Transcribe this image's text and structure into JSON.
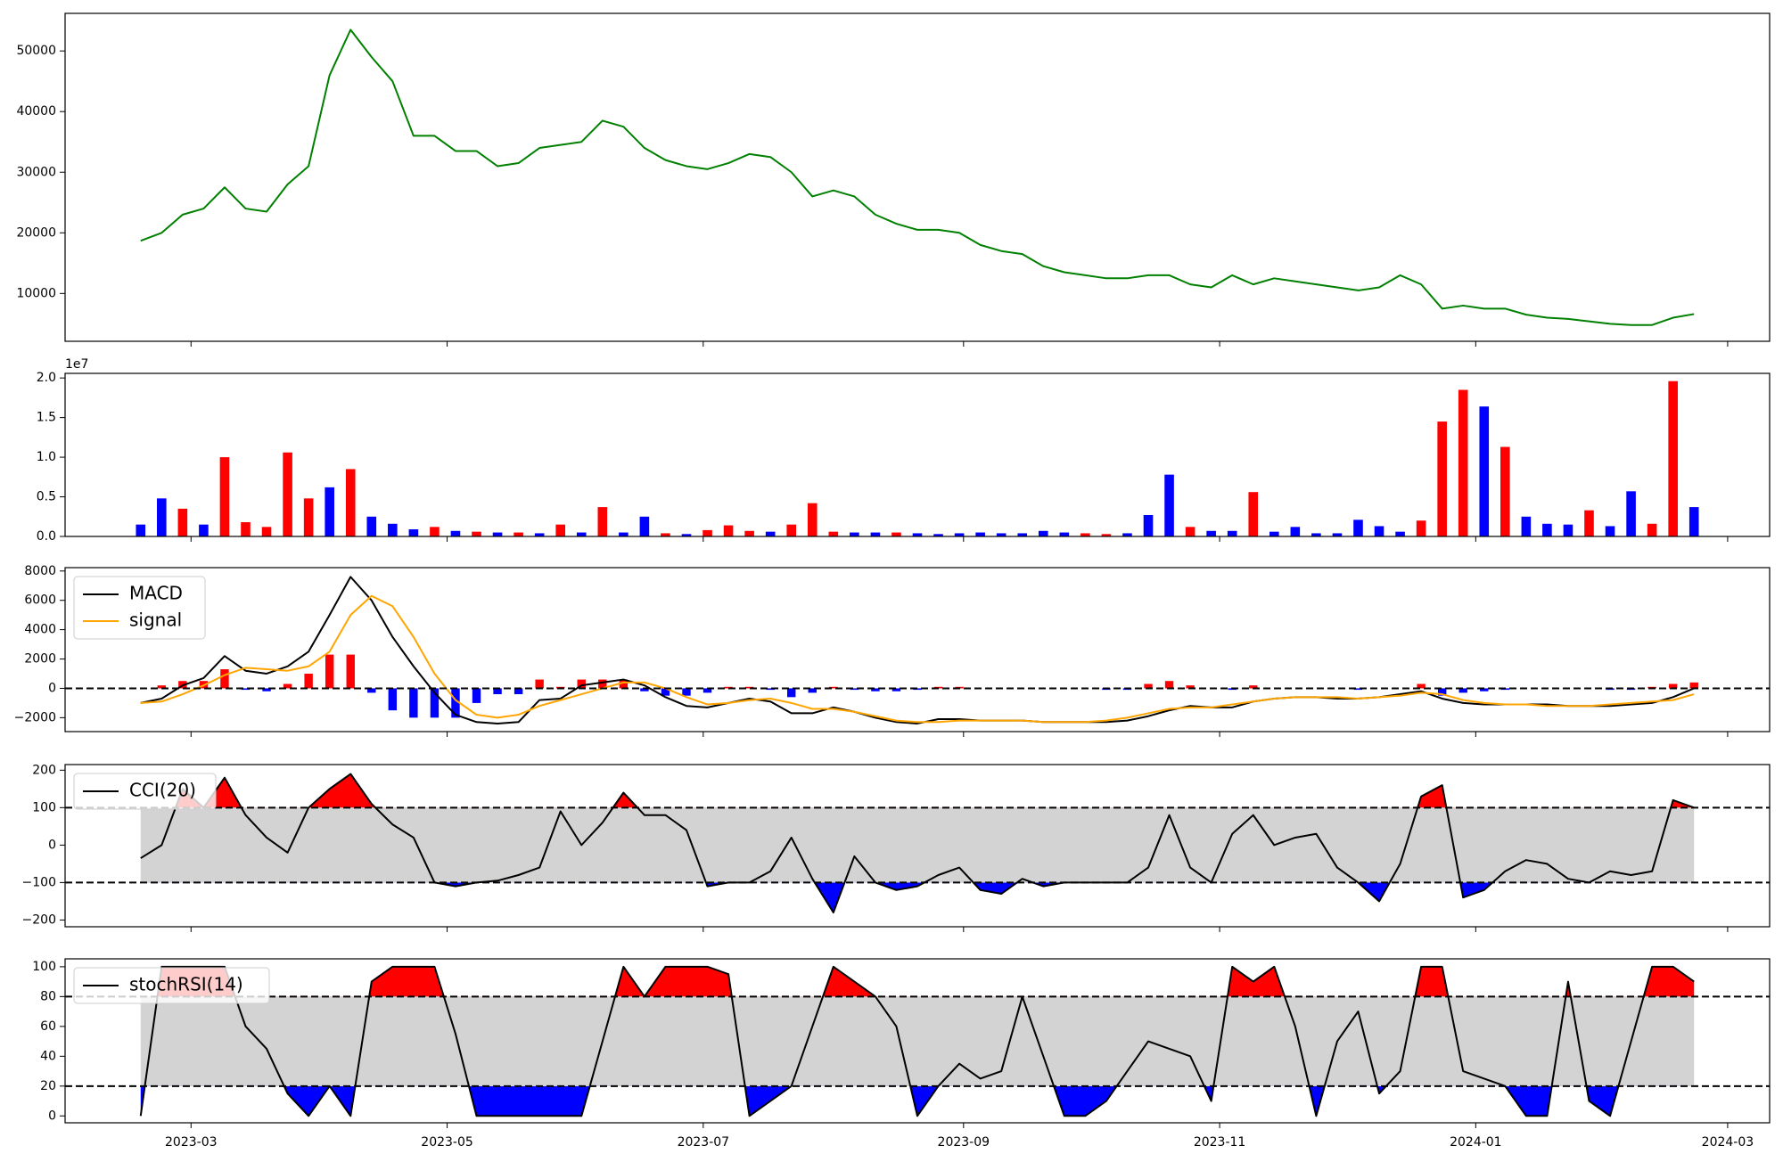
{
  "chart_data": [
    {
      "type": "line",
      "color": "#008000",
      "x": [
        19405,
        19410,
        19415,
        19420,
        19425,
        19430,
        19435,
        19440,
        19445,
        19450,
        19455,
        19460,
        19465,
        19470,
        19475,
        19480,
        19485,
        19490,
        19495,
        19500,
        19505,
        19510,
        19515,
        19520,
        19525,
        19530,
        19535,
        19540,
        19545,
        19550,
        19555,
        19560,
        19565,
        19570,
        19575,
        19580,
        19585,
        19590,
        19595,
        19600,
        19605,
        19610,
        19615,
        19620,
        19625,
        19630,
        19635,
        19640,
        19645,
        19650,
        19655,
        19660,
        19665,
        19670,
        19675,
        19680,
        19685,
        19690,
        19695,
        19700,
        19705,
        19710,
        19715,
        19720,
        19725,
        19730,
        19735,
        19740,
        19745,
        19750,
        19755,
        19760,
        19765,
        19770,
        19775
      ],
      "xlim": [
        19387,
        19793
      ],
      "values": [
        18700,
        20000,
        23000,
        24000,
        27500,
        24000,
        23500,
        28000,
        31000,
        46000,
        53500,
        49000,
        45000,
        36000,
        36000,
        33500,
        33500,
        31000,
        31500,
        34000,
        34500,
        35000,
        38500,
        37500,
        34000,
        32000,
        31000,
        30500,
        31500,
        33000,
        32500,
        30000,
        26000,
        27000,
        26000,
        23000,
        21500,
        20500,
        20500,
        20000,
        18000,
        17000,
        16500,
        14500,
        13500,
        13000,
        12500,
        12500,
        13000,
        13000,
        11500,
        11000,
        13000,
        11500,
        12500,
        12000,
        11500,
        11000,
        10500,
        11000,
        13000,
        11500,
        7500,
        8000,
        7500,
        7500,
        6500,
        6000,
        5800,
        5400,
        5000,
        4800,
        4800,
        6000,
        6600
      ],
      "ylim": [
        2110,
        56200
      ],
      "yticks": [
        10000,
        20000,
        30000,
        40000,
        50000
      ]
    },
    {
      "type": "bar",
      "offset_text": "1e7",
      "values": [
        1500000,
        4800000,
        3500000,
        1500000,
        10000000,
        1800000,
        1200000,
        10600000,
        4800000,
        6200000,
        8500000,
        2500000,
        1600000,
        900000,
        1200000,
        700000,
        600000,
        500000,
        500000,
        400000,
        1500000,
        500000,
        3700000,
        500000,
        2500000,
        400000,
        300000,
        800000,
        1400000,
        700000,
        600000,
        1500000,
        4200000,
        600000,
        500000,
        500000,
        500000,
        400000,
        300000,
        400000,
        500000,
        400000,
        400000,
        700000,
        500000,
        400000,
        300000,
        400000,
        2700000,
        7800000,
        1200000,
        700000,
        700000,
        5600000,
        600000,
        1200000,
        400000,
        400000,
        2100000,
        1300000,
        600000,
        2000000,
        14500000,
        18500000,
        16400000,
        11300000,
        2500000,
        1600000,
        1500000,
        3300000,
        1300000,
        5700000,
        1600000,
        19600000,
        3700000
      ],
      "colors": [
        "blue",
        "blue",
        "red",
        "blue",
        "red",
        "red",
        "red",
        "red",
        "red",
        "blue",
        "red",
        "blue",
        "blue",
        "blue",
        "red",
        "blue",
        "red",
        "blue",
        "red",
        "blue",
        "red",
        "blue",
        "red",
        "blue",
        "blue",
        "red",
        "blue",
        "red",
        "red",
        "red",
        "blue",
        "red",
        "red",
        "red",
        "blue",
        "blue",
        "red",
        "blue",
        "blue",
        "blue",
        "blue",
        "blue",
        "blue",
        "blue",
        "blue",
        "red",
        "red",
        "blue",
        "blue",
        "blue",
        "red",
        "blue",
        "blue",
        "red",
        "blue",
        "blue",
        "blue",
        "blue",
        "blue",
        "blue",
        "blue",
        "red",
        "red",
        "red",
        "blue",
        "red",
        "blue",
        "blue",
        "blue",
        "red",
        "blue",
        "blue",
        "red",
        "red",
        "blue"
      ],
      "ylim": [
        0,
        20580000
      ],
      "yticks": [
        {
          "value": 0,
          "label": "0.0"
        },
        {
          "value": 5000000,
          "label": "0.5"
        },
        {
          "value": 10000000,
          "label": "1.0"
        },
        {
          "value": 15000000,
          "label": "1.5"
        },
        {
          "value": 20000000,
          "label": "2.0"
        }
      ]
    },
    {
      "type": "macd",
      "legend": "upper left",
      "hlines": [
        0
      ],
      "pos_color": "#ff0000",
      "neg_color": "#0000ff",
      "series": [
        {
          "name": "MACD",
          "color": "#000000",
          "values": [
            -1000,
            -700,
            200,
            700,
            2200,
            1200,
            1000,
            1500,
            2500,
            5000,
            7600,
            6000,
            3500,
            1500,
            -300,
            -1800,
            -2300,
            -2400,
            -2300,
            -800,
            -700,
            200,
            400,
            600,
            200,
            -600,
            -1200,
            -1300,
            -1000,
            -700,
            -900,
            -1700,
            -1700,
            -1300,
            -1600,
            -2000,
            -2300,
            -2400,
            -2100,
            -2100,
            -2200,
            -2200,
            -2200,
            -2300,
            -2300,
            -2300,
            -2300,
            -2200,
            -1900,
            -1500,
            -1200,
            -1300,
            -1300,
            -900,
            -700,
            -600,
            -600,
            -700,
            -700,
            -600,
            -400,
            -200,
            -700,
            -1000,
            -1100,
            -1100,
            -1100,
            -1100,
            -1200,
            -1200,
            -1200,
            -1100,
            -1000,
            -600,
            0
          ]
        },
        {
          "name": "signal",
          "color": "#ffa500",
          "values": [
            -1000,
            -900,
            -400,
            200,
            900,
            1400,
            1300,
            1200,
            1500,
            2500,
            5000,
            6300,
            5600,
            3500,
            1000,
            -800,
            -1800,
            -2000,
            -1800,
            -1200,
            -800,
            -400,
            0,
            400,
            400,
            0,
            -600,
            -1100,
            -1000,
            -800,
            -700,
            -1000,
            -1400,
            -1400,
            -1600,
            -1900,
            -2200,
            -2300,
            -2300,
            -2200,
            -2200,
            -2200,
            -2200,
            -2300,
            -2300,
            -2300,
            -2200,
            -2000,
            -1700,
            -1400,
            -1300,
            -1300,
            -1100,
            -900,
            -700,
            -600,
            -600,
            -600,
            -700,
            -600,
            -500,
            -300,
            -400,
            -800,
            -1000,
            -1100,
            -1100,
            -1200,
            -1200,
            -1200,
            -1100,
            -1000,
            -900,
            -800,
            -400
          ]
        }
      ],
      "histogram": [
        0,
        200,
        500,
        500,
        1300,
        -100,
        -200,
        300,
        1000,
        2300,
        2300,
        -300,
        -1500,
        -2000,
        -2000,
        -2000,
        -1000,
        -400,
        -400,
        600,
        100,
        600,
        600,
        600,
        -200,
        -500,
        -500,
        -300,
        100,
        100,
        -100,
        -600,
        -300,
        100,
        -100,
        -200,
        -200,
        -100,
        100,
        100,
        0,
        0,
        0,
        0,
        0,
        0,
        -100,
        -100,
        300,
        500,
        200,
        0,
        -100,
        200,
        0,
        0,
        0,
        0,
        -100,
        0,
        0,
        300,
        -500,
        -300,
        -200,
        -100,
        0,
        0,
        0,
        0,
        -100,
        -100,
        100,
        300,
        400
      ],
      "ylim": [
        -2950,
        8230
      ],
      "yticks": [
        {
          "value": -2000,
          "label": "−2000"
        },
        0,
        2000,
        4000,
        6000,
        8000
      ]
    },
    {
      "type": "band",
      "legend": "upper left",
      "hlines": [
        100,
        -100
      ],
      "band_color": "#d3d3d3",
      "upper_color": "#ff0000",
      "lower_color": "#0000ff",
      "series": [
        {
          "name": "CCI(20)",
          "color": "#000000",
          "values": [
            -35,
            0,
            150,
            100,
            180,
            80,
            20,
            -20,
            100,
            150,
            190,
            110,
            55,
            20,
            -100,
            -110,
            -100,
            -95,
            -80,
            -60,
            90,
            0,
            60,
            140,
            80,
            80,
            40,
            -110,
            -100,
            -100,
            -70,
            20,
            -90,
            -180,
            -30,
            -100,
            -120,
            -110,
            -80,
            -60,
            -120,
            -130,
            -90,
            -110,
            -100,
            -100,
            -100,
            -100,
            -60,
            80,
            -60,
            -100,
            30,
            80,
            0,
            20,
            30,
            -60,
            -100,
            -150,
            -50,
            130,
            160,
            -140,
            -120,
            -70,
            -40,
            -50,
            -90,
            -100,
            -70,
            -80,
            -70,
            120,
            100
          ]
        }
      ],
      "ylim": [
        -218,
        215
      ],
      "yticks": [
        {
          "value": -200,
          "label": "−200"
        },
        {
          "value": -100,
          "label": "−100"
        },
        0,
        100,
        200
      ]
    },
    {
      "type": "band",
      "legend": "upper left",
      "hlines": [
        80,
        20
      ],
      "band_color": "#d3d3d3",
      "upper_color": "#ff0000",
      "lower_color": "#0000ff",
      "series": [
        {
          "name": "stochRSI(14)",
          "color": "#000000",
          "values": [
            0,
            100,
            100,
            100,
            100,
            60,
            45,
            15,
            0,
            20,
            0,
            90,
            100,
            100,
            100,
            55,
            0,
            0,
            0,
            0,
            0,
            0,
            50,
            100,
            80,
            100,
            100,
            100,
            95,
            0,
            10,
            20,
            60,
            100,
            90,
            80,
            60,
            0,
            20,
            35,
            25,
            30,
            80,
            40,
            0,
            0,
            10,
            30,
            50,
            45,
            40,
            10,
            100,
            90,
            100,
            60,
            0,
            50,
            70,
            15,
            30,
            100,
            100,
            30,
            25,
            20,
            0,
            0,
            90,
            10,
            0,
            50,
            100,
            100,
            90
          ]
        }
      ],
      "ylim": [
        -4.6,
        105.3
      ],
      "yticks": [
        0,
        20,
        40,
        60,
        80,
        100
      ],
      "xticks": [
        {
          "value": 19417,
          "label": "2023-03"
        },
        {
          "value": 19478,
          "label": "2023-05"
        },
        {
          "value": 19539,
          "label": "2023-07"
        },
        {
          "value": 19601,
          "label": "2023-09"
        },
        {
          "value": 19662,
          "label": "2023-11"
        },
        {
          "value": 19723,
          "label": "2024-01"
        },
        {
          "value": 19783,
          "label": "2024-03"
        }
      ]
    }
  ]
}
